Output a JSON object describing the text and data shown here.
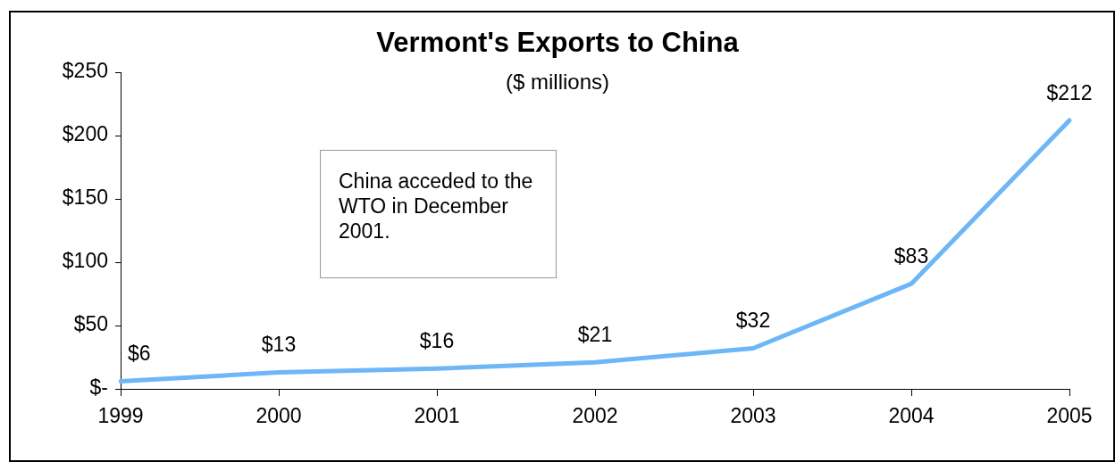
{
  "chart_data": {
    "type": "line",
    "title": "Vermont's Exports to China",
    "subtitle": "($ millions)",
    "categories": [
      "1999",
      "2000",
      "2001",
      "2002",
      "2003",
      "2004",
      "2005"
    ],
    "series": [
      {
        "color": "#6db6f7",
        "values": [
          6,
          13,
          16,
          21,
          32,
          83,
          212
        ],
        "value_labels": [
          "$6",
          "$13",
          "$16",
          "$21",
          "$32",
          "$83",
          "$212"
        ]
      }
    ],
    "ylim": [
      0,
      250
    ],
    "yticks": [
      {
        "value": 0,
        "label": "$-"
      },
      {
        "value": 50,
        "label": "$50"
      },
      {
        "value": 100,
        "label": "$100"
      },
      {
        "value": 150,
        "label": "$150"
      },
      {
        "value": 200,
        "label": "$200"
      },
      {
        "value": 250,
        "label": "$250"
      }
    ],
    "annotations": [
      "China acceded to the WTO in December 2001."
    ],
    "grid": false,
    "legend": false,
    "marker": "none",
    "line_style": "solid"
  }
}
